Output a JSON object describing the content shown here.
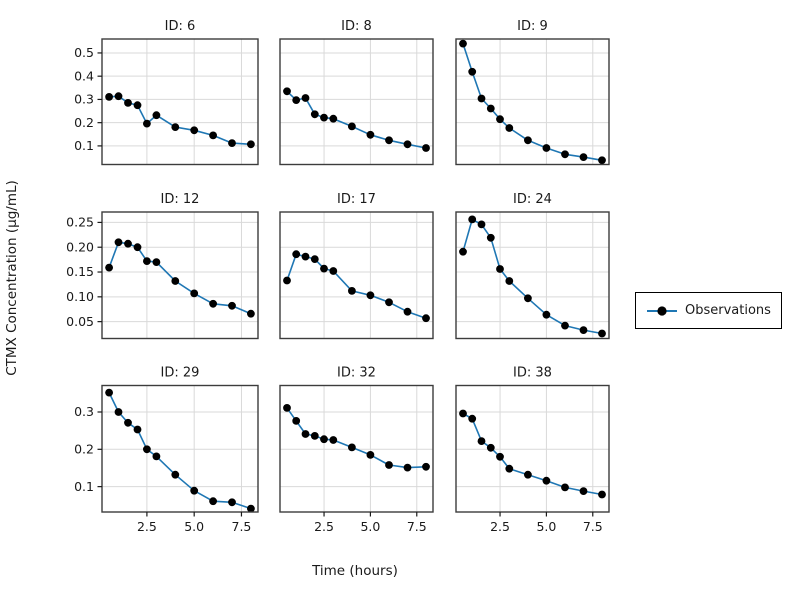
{
  "figure": {
    "y_axis_label": "CTMX Concentration (µg/mL)",
    "x_axis_label": "Time (hours)"
  },
  "chart_data": {
    "type": "line",
    "description": "3x3 faceted scatter-line plot of drug concentration vs time per subject ID",
    "facet_titles": [
      "ID: 6",
      "ID: 8",
      "ID: 9",
      "ID: 12",
      "ID: 17",
      "ID: 24",
      "ID: 29",
      "ID: 32",
      "ID: 38"
    ],
    "x_label": "Time (hours)",
    "y_label": "CTMX Concentration (µg/mL)",
    "x": [
      0.5,
      1,
      1.5,
      2,
      2.5,
      3,
      4,
      5,
      6,
      7,
      8
    ],
    "x_ticks": [
      2.5,
      5.0,
      7.5
    ],
    "xlim": [
      0.125,
      8.375
    ],
    "grid": true,
    "legend": {
      "label": "Observations",
      "position": "right-center"
    },
    "line_color": "#1f77b4",
    "marker_color": "#000000",
    "rows": [
      {
        "ylim": [
          0.02,
          0.56
        ],
        "y_ticks": [
          0.1,
          0.2,
          0.3,
          0.4,
          0.5
        ],
        "tick_decimals": 1,
        "panels": [
          {
            "title": "ID: 6",
            "y": [
              0.311,
              0.314,
              0.285,
              0.275,
              0.196,
              0.232,
              0.181,
              0.167,
              0.145,
              0.112,
              0.107
            ]
          },
          {
            "title": "ID: 8",
            "y": [
              0.335,
              0.297,
              0.306,
              0.236,
              0.222,
              0.217,
              0.184,
              0.148,
              0.124,
              0.107,
              0.091
            ]
          },
          {
            "title": "ID: 9",
            "y": [
              0.54,
              0.419,
              0.304,
              0.261,
              0.215,
              0.177,
              0.124,
              0.091,
              0.064,
              0.052,
              0.038
            ]
          }
        ]
      },
      {
        "ylim": [
          0.016,
          0.271
        ],
        "y_ticks": [
          0.05,
          0.1,
          0.15,
          0.2,
          0.25
        ],
        "tick_decimals": 2,
        "panels": [
          {
            "title": "ID: 12",
            "y": [
              0.159,
              0.21,
              0.207,
              0.2,
              0.172,
              0.17,
              0.132,
              0.107,
              0.086,
              0.082,
              0.066
            ]
          },
          {
            "title": "ID: 17",
            "y": [
              0.133,
              0.186,
              0.181,
              0.176,
              0.157,
              0.152,
              0.112,
              0.103,
              0.089,
              0.07,
              0.057
            ]
          },
          {
            "title": "ID: 24",
            "y": [
              0.191,
              0.256,
              0.246,
              0.219,
              0.156,
              0.132,
              0.097,
              0.064,
              0.042,
              0.033,
              0.026
            ]
          }
        ]
      },
      {
        "ylim": [
          0.032,
          0.371
        ],
        "y_ticks": [
          0.1,
          0.2,
          0.3
        ],
        "tick_decimals": 1,
        "panels": [
          {
            "title": "ID: 29",
            "y": [
              0.352,
              0.3,
              0.271,
              0.253,
              0.2,
              0.181,
              0.132,
              0.089,
              0.061,
              0.058,
              0.041
            ]
          },
          {
            "title": "ID: 32",
            "y": [
              0.311,
              0.276,
              0.241,
              0.236,
              0.227,
              0.225,
              0.205,
              0.185,
              0.158,
              0.151,
              0.153
            ]
          },
          {
            "title": "ID: 38",
            "y": [
              0.296,
              0.282,
              0.222,
              0.204,
              0.18,
              0.148,
              0.132,
              0.116,
              0.098,
              0.088,
              0.079
            ]
          }
        ]
      }
    ]
  }
}
